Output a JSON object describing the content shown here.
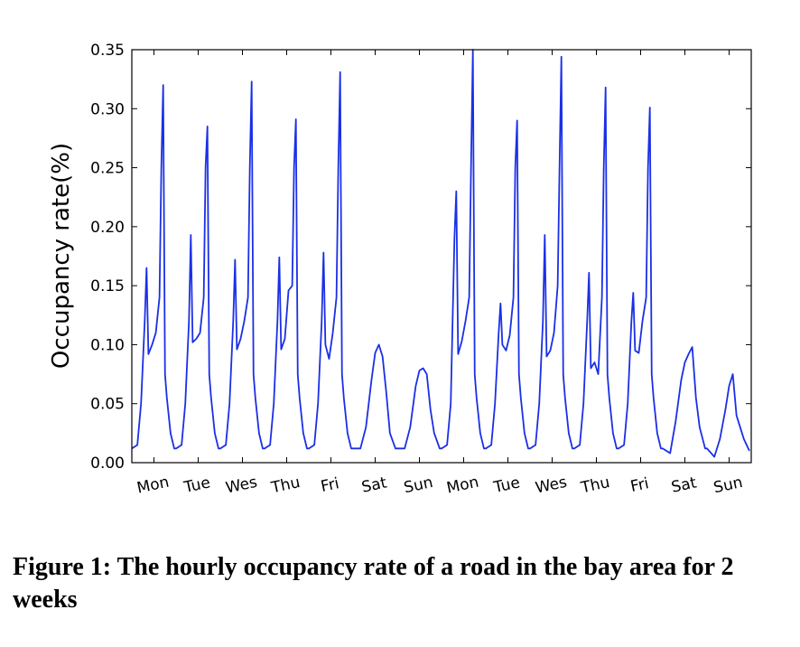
{
  "chart_data": {
    "type": "line",
    "y_label": "Occupancy rate(%)",
    "xlim": [
      0,
      336
    ],
    "ylim": [
      0,
      0.35
    ],
    "xticks": [
      {
        "value": 12,
        "label": "Mon"
      },
      {
        "value": 36,
        "label": "Tue"
      },
      {
        "value": 60,
        "label": "Wes"
      },
      {
        "value": 84,
        "label": "Thu"
      },
      {
        "value": 108,
        "label": "Fri"
      },
      {
        "value": 132,
        "label": "Sat"
      },
      {
        "value": 156,
        "label": "Sun"
      },
      {
        "value": 180,
        "label": "Mon"
      },
      {
        "value": 204,
        "label": "Tue"
      },
      {
        "value": 228,
        "label": "Wes"
      },
      {
        "value": 252,
        "label": "Thu"
      },
      {
        "value": 276,
        "label": "Fri"
      },
      {
        "value": 300,
        "label": "Sat"
      },
      {
        "value": 324,
        "label": "Sun"
      }
    ],
    "yticks": [
      {
        "value": 0,
        "label": "0.00"
      },
      {
        "value": 0.05,
        "label": "0.05"
      },
      {
        "value": 0.1,
        "label": "0.10"
      },
      {
        "value": 0.15,
        "label": "0.15"
      },
      {
        "value": 0.2,
        "label": "0.20"
      },
      {
        "value": 0.25,
        "label": "0.25"
      },
      {
        "value": 0.3,
        "label": "0.30"
      },
      {
        "value": 0.35,
        "label": "0.35"
      }
    ],
    "grid": false,
    "series": [
      {
        "color": "#1a2fe6",
        "x": [
          0,
          3,
          5,
          7,
          8,
          9,
          11,
          13,
          15,
          16,
          17,
          18,
          19,
          21,
          23,
          24,
          27,
          29,
          31,
          32,
          33,
          35,
          37,
          39,
          40,
          41,
          42,
          43,
          45,
          47,
          48,
          51,
          53,
          55,
          56,
          57,
          59,
          61,
          63,
          64,
          65,
          66,
          67,
          69,
          71,
          72,
          75,
          77,
          79,
          80,
          81,
          83,
          85,
          87,
          88,
          89,
          90,
          91,
          93,
          95,
          96,
          99,
          101,
          103,
          104,
          105,
          107,
          109,
          111,
          112,
          113,
          114,
          115,
          117,
          119,
          120,
          124,
          127,
          130,
          132,
          134,
          136,
          138,
          140,
          143,
          144,
          148,
          151,
          154,
          156,
          158,
          160,
          162,
          164,
          167,
          168,
          171,
          173,
          175,
          176,
          177,
          179,
          181,
          183,
          184,
          185,
          186,
          187,
          189,
          191,
          192,
          195,
          197,
          199,
          200,
          201,
          203,
          205,
          207,
          208,
          209,
          210,
          211,
          213,
          215,
          216,
          219,
          221,
          223,
          224,
          225,
          227,
          229,
          231,
          232,
          233,
          234,
          235,
          237,
          239,
          240,
          243,
          245,
          247,
          248,
          249,
          251,
          253,
          255,
          256,
          257,
          258,
          259,
          261,
          263,
          264,
          267,
          269,
          271,
          272,
          273,
          275,
          277,
          279,
          280,
          281,
          282,
          283,
          285,
          287,
          288,
          292,
          295,
          298,
          300,
          302,
          304,
          306,
          308,
          311,
          312,
          316,
          319,
          322,
          324,
          326,
          328,
          330,
          332,
          335
        ],
        "values": [
          0.012,
          0.015,
          0.05,
          0.12,
          0.165,
          0.092,
          0.1,
          0.11,
          0.14,
          0.25,
          0.32,
          0.075,
          0.055,
          0.025,
          0.012,
          0.012,
          0.015,
          0.05,
          0.12,
          0.193,
          0.102,
          0.105,
          0.11,
          0.14,
          0.25,
          0.285,
          0.075,
          0.055,
          0.025,
          0.012,
          0.012,
          0.015,
          0.05,
          0.12,
          0.172,
          0.096,
          0.105,
          0.12,
          0.14,
          0.25,
          0.323,
          0.075,
          0.055,
          0.025,
          0.012,
          0.012,
          0.015,
          0.05,
          0.12,
          0.174,
          0.096,
          0.105,
          0.146,
          0.15,
          0.25,
          0.291,
          0.075,
          0.055,
          0.025,
          0.012,
          0.012,
          0.015,
          0.05,
          0.12,
          0.178,
          0.1,
          0.088,
          0.11,
          0.14,
          0.25,
          0.331,
          0.075,
          0.055,
          0.025,
          0.012,
          0.012,
          0.012,
          0.03,
          0.07,
          0.093,
          0.1,
          0.09,
          0.06,
          0.025,
          0.012,
          0.012,
          0.012,
          0.03,
          0.065,
          0.078,
          0.08,
          0.075,
          0.045,
          0.025,
          0.012,
          0.012,
          0.015,
          0.05,
          0.19,
          0.23,
          0.092,
          0.103,
          0.12,
          0.14,
          0.25,
          0.35,
          0.075,
          0.055,
          0.025,
          0.012,
          0.012,
          0.015,
          0.05,
          0.11,
          0.135,
          0.1,
          0.095,
          0.108,
          0.14,
          0.25,
          0.29,
          0.075,
          0.055,
          0.025,
          0.012,
          0.012,
          0.015,
          0.05,
          0.12,
          0.193,
          0.09,
          0.095,
          0.11,
          0.15,
          0.25,
          0.344,
          0.075,
          0.055,
          0.025,
          0.012,
          0.012,
          0.015,
          0.05,
          0.12,
          0.161,
          0.08,
          0.085,
          0.075,
          0.14,
          0.25,
          0.318,
          0.075,
          0.055,
          0.025,
          0.012,
          0.012,
          0.015,
          0.05,
          0.12,
          0.144,
          0.095,
          0.093,
          0.12,
          0.14,
          0.25,
          0.301,
          0.075,
          0.055,
          0.025,
          0.012,
          0.012,
          0.008,
          0.035,
          0.07,
          0.085,
          0.092,
          0.098,
          0.055,
          0.03,
          0.012,
          0.012,
          0.005,
          0.02,
          0.045,
          0.065,
          0.075,
          0.04,
          0.03,
          0.02,
          0.01
        ]
      }
    ]
  },
  "caption": "Figure 1: The hourly occupancy rate of a road in the bay area for 2 weeks"
}
